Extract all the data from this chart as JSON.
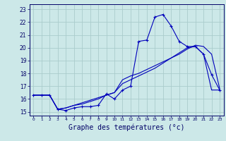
{
  "title": "Graphe des températures (°c)",
  "bg_color": "#cce8e8",
  "grid_color": "#aacccc",
  "line_color": "#0000bb",
  "hours": [
    0,
    1,
    2,
    3,
    4,
    5,
    6,
    7,
    8,
    9,
    10,
    11,
    12,
    13,
    14,
    15,
    16,
    17,
    18,
    19,
    20,
    21,
    22,
    23
  ],
  "temp_curve": [
    16.3,
    16.3,
    16.3,
    15.2,
    15.1,
    15.3,
    15.4,
    15.4,
    15.5,
    16.4,
    16.0,
    16.7,
    17.0,
    20.5,
    20.6,
    22.4,
    22.6,
    21.7,
    20.5,
    20.1,
    20.1,
    19.5,
    17.9,
    16.7
  ],
  "line2": [
    16.3,
    16.3,
    16.3,
    15.2,
    15.3,
    15.5,
    15.7,
    15.9,
    16.1,
    16.3,
    16.5,
    17.5,
    17.8,
    18.0,
    18.3,
    18.6,
    18.9,
    19.2,
    19.5,
    19.9,
    20.2,
    20.1,
    19.5,
    16.8
  ],
  "line3": [
    16.3,
    16.3,
    16.3,
    15.2,
    15.3,
    15.5,
    15.6,
    15.8,
    16.0,
    16.3,
    16.5,
    17.2,
    17.5,
    17.8,
    18.1,
    18.4,
    18.8,
    19.2,
    19.6,
    20.0,
    20.1,
    19.5,
    16.7,
    16.7
  ],
  "ylim_min": 14.7,
  "ylim_max": 23.4,
  "yticks": [
    15,
    16,
    17,
    18,
    19,
    20,
    21,
    22,
    23
  ],
  "xlim_min": -0.5,
  "xlim_max": 23.5,
  "ylabel_fontsize": 5,
  "xlabel_fontsize": 7
}
